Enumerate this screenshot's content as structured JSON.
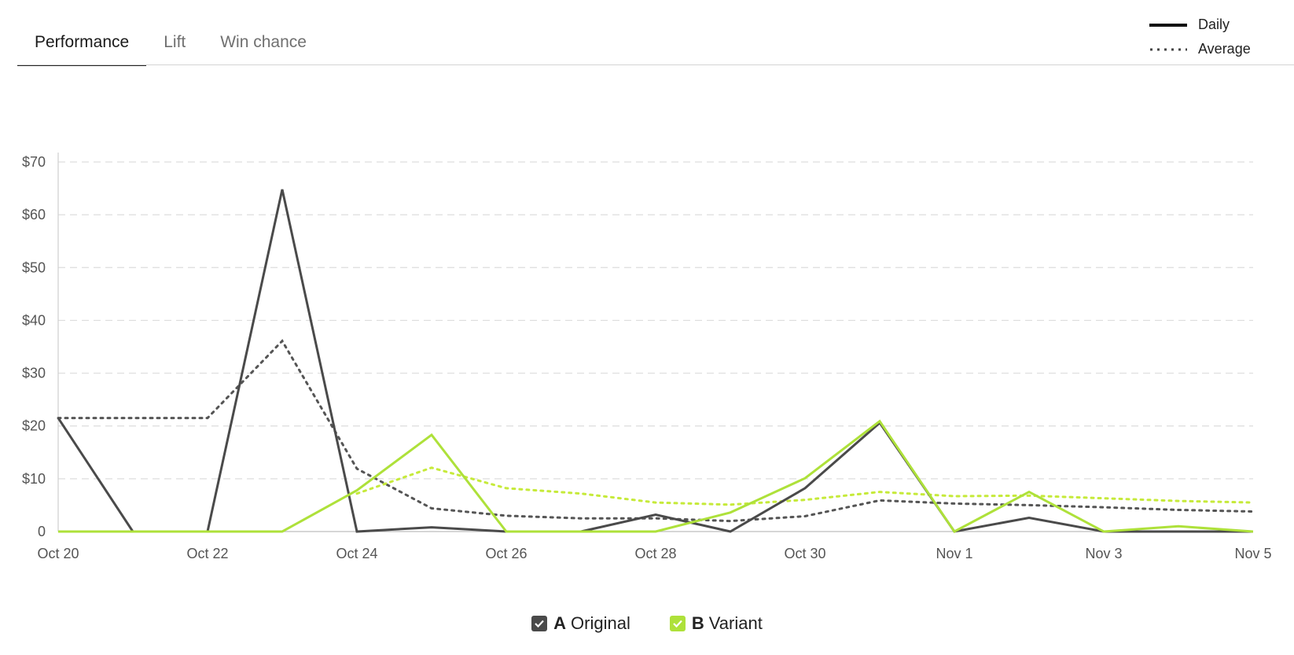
{
  "tabs": [
    {
      "label": "Performance",
      "active": true
    },
    {
      "label": "Lift",
      "active": false
    },
    {
      "label": "Win chance",
      "active": false
    }
  ],
  "line_legend": {
    "daily": "Daily",
    "average": "Average"
  },
  "series_legend": [
    {
      "key": "A",
      "name": "Original",
      "color": "#4a4a4a",
      "checked": true
    },
    {
      "key": "B",
      "name": "Variant",
      "color": "#aee13a",
      "checked": true
    }
  ],
  "chart_data": {
    "type": "line",
    "x": [
      "Oct 20",
      "Oct 21",
      "Oct 22",
      "Oct 23",
      "Oct 24",
      "Oct 25",
      "Oct 26",
      "Oct 27",
      "Oct 28",
      "Oct 29",
      "Oct 30",
      "Oct 31",
      "Nov 1",
      "Nov 2",
      "Nov 3",
      "Nov 4",
      "Nov 5"
    ],
    "x_tick_labels": [
      "Oct 20",
      "Oct 22",
      "Oct 24",
      "Oct 26",
      "Oct 28",
      "Oct 30",
      "Nov 1",
      "Nov 3",
      "Nov 5"
    ],
    "y_tick_labels": [
      "0",
      "$10",
      "$20",
      "$30",
      "$40",
      "$50",
      "$60",
      "$70"
    ],
    "ylim": [
      0,
      70
    ],
    "grid": true,
    "series": [
      {
        "name": "Original",
        "style": "Daily",
        "color": "#4a4a4a",
        "values": [
          21.5,
          0,
          0,
          64.8,
          0,
          0.8,
          0,
          0,
          3.2,
          0,
          8.2,
          20.6,
          0,
          2.6,
          0,
          0,
          0
        ]
      },
      {
        "name": "Original",
        "style": "Average",
        "color": "#555555",
        "values": [
          21.5,
          21.5,
          21.5,
          36.1,
          11.9,
          4.4,
          3.0,
          2.5,
          2.5,
          2.0,
          2.9,
          5.9,
          5.3,
          5.0,
          4.6,
          4.1,
          3.8
        ]
      },
      {
        "name": "Variant",
        "style": "Daily",
        "color": "#aee13a",
        "values": [
          0,
          0,
          0,
          0,
          7.8,
          18.3,
          0,
          0,
          0,
          3.6,
          10.1,
          20.9,
          0,
          7.5,
          0,
          1.0,
          0
        ]
      },
      {
        "name": "Variant",
        "style": "Average",
        "color": "#c6ea3a",
        "values": [
          null,
          null,
          null,
          null,
          7.2,
          12.1,
          8.2,
          7.2,
          5.5,
          5.1,
          6.0,
          7.5,
          6.7,
          6.8,
          6.3,
          5.8,
          5.5
        ]
      }
    ]
  }
}
